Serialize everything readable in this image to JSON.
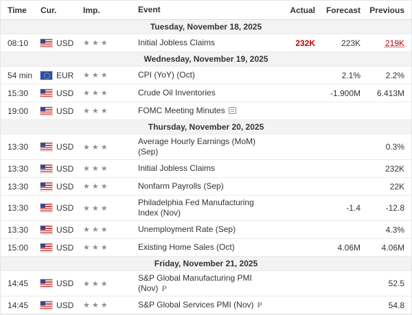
{
  "calendar": {
    "columns": [
      "Time",
      "Cur.",
      "Imp.",
      "Event",
      "Actual",
      "Forecast",
      "Previous"
    ],
    "star_glyph": "★",
    "preliminary_label": "P",
    "colors": {
      "accent-red": "#c20000",
      "section-bg": "#f3f3f3",
      "border": "#e6e6e6",
      "text": "#333333",
      "stars": "#8f8f8f"
    },
    "sections": [
      {
        "date": "Tuesday, November 18, 2025",
        "rows": [
          {
            "time": "08:10",
            "flag": "us",
            "currency": "USD",
            "importance": 3,
            "event": "Initial Jobless Claims",
            "actual": "232K",
            "actual_highlight": "red",
            "forecast": "223K",
            "previous": "219K",
            "previous_highlight": "red-revised"
          }
        ]
      },
      {
        "date": "Wednesday, November 19, 2025",
        "rows": [
          {
            "time": "54 min",
            "flag": "eu",
            "currency": "EUR",
            "importance": 3,
            "event": "CPI (YoY) (Oct)",
            "actual": "",
            "forecast": "2.1%",
            "previous": "2.2%"
          },
          {
            "time": "15:30",
            "flag": "us",
            "currency": "USD",
            "importance": 3,
            "event": "Crude Oil Inventories",
            "actual": "",
            "forecast": "-1.900M",
            "previous": "6.413M"
          },
          {
            "time": "19:00",
            "flag": "us",
            "currency": "USD",
            "importance": 3,
            "event": "FOMC Meeting Minutes",
            "event_icon": "report",
            "actual": "",
            "forecast": "",
            "previous": ""
          }
        ]
      },
      {
        "date": "Thursday, November 20, 2025",
        "rows": [
          {
            "time": "13:30",
            "flag": "us",
            "currency": "USD",
            "importance": 3,
            "event": "Average Hourly Earnings (MoM) (Sep)",
            "actual": "",
            "forecast": "",
            "previous": "0.3%"
          },
          {
            "time": "13:30",
            "flag": "us",
            "currency": "USD",
            "importance": 3,
            "event": "Initial Jobless Claims",
            "actual": "",
            "forecast": "",
            "previous": "232K"
          },
          {
            "time": "13:30",
            "flag": "us",
            "currency": "USD",
            "importance": 3,
            "event": "Nonfarm Payrolls (Sep)",
            "actual": "",
            "forecast": "",
            "previous": "22K"
          },
          {
            "time": "13:30",
            "flag": "us",
            "currency": "USD",
            "importance": 3,
            "event": "Philadelphia Fed Manufacturing Index (Nov)",
            "actual": "",
            "forecast": "-1.4",
            "previous": "-12.8"
          },
          {
            "time": "13:30",
            "flag": "us",
            "currency": "USD",
            "importance": 3,
            "event": "Unemployment Rate (Sep)",
            "actual": "",
            "forecast": "",
            "previous": "4.3%"
          },
          {
            "time": "15:00",
            "flag": "us",
            "currency": "USD",
            "importance": 3,
            "event": "Existing Home Sales (Oct)",
            "actual": "",
            "forecast": "4.06M",
            "previous": "4.06M"
          }
        ]
      },
      {
        "date": "Friday, November 21, 2025",
        "rows": [
          {
            "time": "14:45",
            "flag": "us",
            "currency": "USD",
            "importance": 3,
            "event": "S&P Global Manufacturing PMI (Nov)",
            "event_icon": "preliminary",
            "actual": "",
            "forecast": "",
            "previous": "52.5"
          },
          {
            "time": "14:45",
            "flag": "us",
            "currency": "USD",
            "importance": 3,
            "event": "S&P Global Services PMI (Nov)",
            "event_icon": "preliminary",
            "actual": "",
            "forecast": "",
            "previous": "54.8"
          }
        ]
      }
    ]
  }
}
